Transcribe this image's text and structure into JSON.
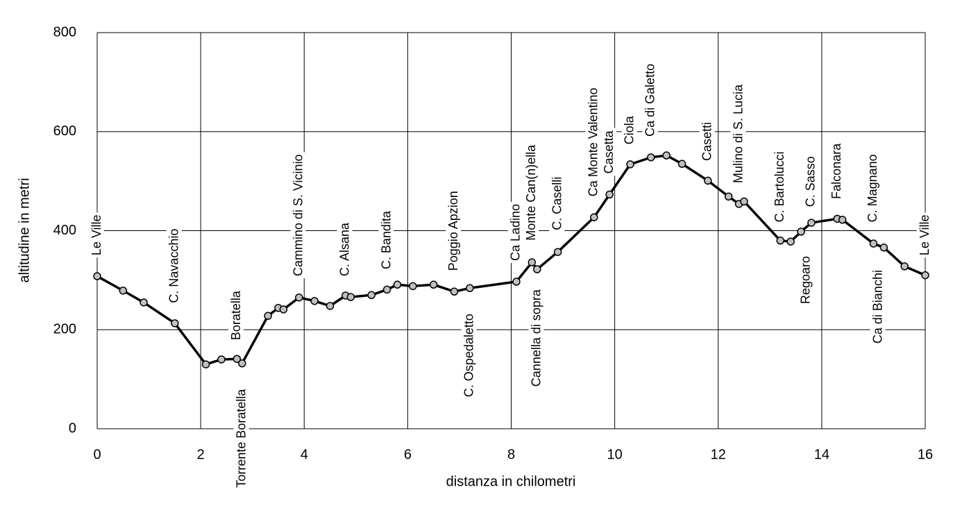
{
  "chart_data": {
    "type": "line",
    "xlabel": "distanza in chilometri",
    "ylabel": "altitudine  in metri",
    "x": [
      0,
      0.5,
      0.9,
      1.5,
      2.1,
      2.4,
      2.7,
      2.8,
      3.3,
      3.5,
      3.6,
      3.9,
      4.2,
      4.5,
      4.8,
      4.9,
      5.3,
      5.6,
      5.8,
      6.1,
      6.5,
      6.9,
      7.2,
      8.1,
      8.4,
      8.5,
      8.9,
      9.6,
      9.9,
      10.3,
      10.7,
      11.0,
      11.3,
      11.8,
      12.2,
      12.4,
      12.5,
      13.2,
      13.4,
      13.6,
      13.8,
      14.3,
      14.4,
      15.0,
      15.2,
      15.6,
      16
    ],
    "values": [
      308,
      279,
      255,
      213,
      130,
      140,
      141,
      132,
      228,
      244,
      241,
      265,
      258,
      248,
      269,
      266,
      270,
      281,
      291,
      288,
      291,
      277,
      284,
      297,
      336,
      322,
      357,
      427,
      473,
      534,
      548,
      552,
      535,
      501,
      469,
      454,
      459,
      380,
      378,
      398,
      416,
      424,
      422,
      374,
      366,
      328,
      310
    ],
    "color": "#000000",
    "marker_color": "#c0c0c0",
    "xlim": [
      0,
      16
    ],
    "xticks": [
      0,
      2,
      4,
      6,
      8,
      10,
      12,
      14,
      16
    ],
    "ylim": [
      0,
      800
    ],
    "yticks": [
      0,
      200,
      400,
      600,
      800
    ],
    "grid": true,
    "annotations": [
      {
        "text": "Le Ville",
        "x": 0,
        "y": 350
      },
      {
        "text": "C. Navacchio",
        "x": 1.5,
        "y": 254
      },
      {
        "text": "Boratella",
        "x": 2.7,
        "y": 179
      },
      {
        "text": "Torrente Boratella",
        "x": 2.8,
        "y": -119
      },
      {
        "text": "Cammino di S. Vicinio",
        "x": 3.9,
        "y": 308
      },
      {
        "text": "C. Alsana",
        "x": 4.8,
        "y": 308
      },
      {
        "text": "C. Bandita",
        "x": 5.6,
        "y": 322
      },
      {
        "text": "Poggio Apzion",
        "x": 6.9,
        "y": 319
      },
      {
        "text": "C. Ospedaletto",
        "x": 7.2,
        "y": 64
      },
      {
        "text": "Ca Ladino",
        "x": 8.1,
        "y": 339
      },
      {
        "text": "Monte Can(n)ella",
        "x": 8.4,
        "y": 380
      },
      {
        "text": "Cannella di sopra",
        "x": 8.5,
        "y": 85
      },
      {
        "text": "C. Caselli",
        "x": 8.9,
        "y": 401
      },
      {
        "text": "Ca Monte Valentino",
        "x": 9.6,
        "y": 469
      },
      {
        "text": "Casetta",
        "x": 9.9,
        "y": 515
      },
      {
        "text": "Ciola",
        "x": 10.3,
        "y": 574
      },
      {
        "text": "Ca di Galetto",
        "x": 10.7,
        "y": 590
      },
      {
        "text": "Casetti",
        "x": 11.8,
        "y": 541
      },
      {
        "text": "Mulino di S. Lucia",
        "x": 12.4,
        "y": 496
      },
      {
        "text": "C. Bartolucci",
        "x": 13.2,
        "y": 417
      },
      {
        "text": "Regoaro",
        "x": 13.7,
        "y": 252
      },
      {
        "text": "C. Sasso",
        "x": 13.8,
        "y": 448
      },
      {
        "text": "Falconara",
        "x": 14.3,
        "y": 464
      },
      {
        "text": "C. Magnano",
        "x": 15.0,
        "y": 417
      },
      {
        "text": "Ca di Bianchi",
        "x": 15.1,
        "y": 172
      },
      {
        "text": "Le Ville",
        "x": 16,
        "y": 350
      }
    ]
  }
}
